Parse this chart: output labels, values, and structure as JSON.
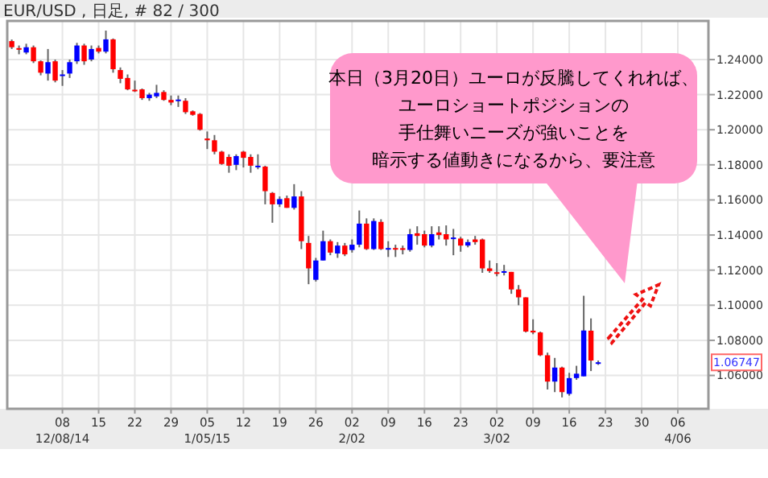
{
  "chart_data": {
    "type": "candlestick",
    "title": "EUR/USD , 日足, # 82 / 300",
    "categories": [
      null,
      null,
      null,
      null,
      null,
      null,
      null,
      "08\n12/08/14",
      null,
      null,
      null,
      null,
      "15",
      null,
      null,
      null,
      null,
      "22",
      null,
      null,
      null,
      null,
      "29",
      null,
      null,
      null,
      null,
      "05\n1/05/15",
      null,
      null,
      null,
      null,
      "12",
      null,
      null,
      null,
      null,
      "19",
      null,
      null,
      null,
      null,
      "26",
      null,
      null,
      null,
      null,
      "02\n2/02",
      null,
      null,
      null,
      null,
      "09",
      null,
      null,
      null,
      null,
      "16",
      null,
      null,
      null,
      null,
      "23",
      null,
      null,
      null,
      null,
      "02\n3/02",
      null,
      null,
      null,
      null,
      "09",
      null,
      null,
      null,
      null,
      "16",
      null,
      null,
      null,
      null,
      "23",
      null,
      null,
      null,
      null,
      "30",
      null,
      null,
      null,
      null,
      "06\n4/06",
      null,
      null,
      null,
      null
    ],
    "ohlc": [
      [
        1.2505,
        1.2514,
        1.246,
        1.247
      ],
      [
        1.2465,
        1.248,
        1.243,
        1.246
      ],
      [
        1.244,
        1.249,
        1.243,
        1.247
      ],
      [
        1.247,
        1.248,
        1.238,
        1.239
      ],
      [
        1.239,
        1.2395,
        1.231,
        1.2325
      ],
      [
        1.232,
        1.246,
        1.228,
        1.2385
      ],
      [
        1.239,
        1.24,
        1.227,
        1.228
      ],
      [
        1.231,
        1.234,
        1.225,
        1.2315
      ],
      [
        1.232,
        1.24,
        1.2295,
        1.2385
      ],
      [
        1.239,
        1.2495,
        1.2375,
        1.248
      ],
      [
        1.248,
        1.249,
        1.237,
        1.239
      ],
      [
        1.24,
        1.248,
        1.239,
        1.246
      ],
      [
        1.2466,
        1.248,
        1.2435,
        1.2445
      ],
      [
        1.2445,
        1.2565,
        1.2435,
        1.2515
      ],
      [
        1.2515,
        1.252,
        1.2325,
        1.2345
      ],
      [
        1.234,
        1.2355,
        1.2265,
        1.229
      ],
      [
        1.2295,
        1.2315,
        1.2225,
        1.223
      ],
      [
        1.2228,
        1.228,
        1.2215,
        1.2225
      ],
      [
        1.223,
        1.2235,
        1.217,
        1.218
      ],
      [
        1.218,
        1.221,
        1.2165,
        1.22
      ],
      [
        1.219,
        1.2256,
        1.218,
        1.221
      ],
      [
        1.2215,
        1.2225,
        1.2165,
        1.217
      ],
      [
        1.217,
        1.2195,
        1.214,
        1.2155
      ],
      [
        1.2168,
        1.2195,
        1.213,
        1.2172
      ],
      [
        1.2165,
        1.218,
        1.209,
        1.21
      ],
      [
        1.2105,
        1.211,
        1.208,
        1.2085
      ],
      [
        1.209,
        1.2095,
        1.1995,
        1.2
      ],
      [
        1.195,
        1.199,
        1.189,
        1.194
      ],
      [
        1.194,
        1.197,
        1.186,
        1.1875
      ],
      [
        1.1875,
        1.188,
        1.18,
        1.1805
      ],
      [
        1.1845,
        1.186,
        1.1755,
        1.1795
      ],
      [
        1.18,
        1.186,
        1.177,
        1.185
      ],
      [
        1.1875,
        1.188,
        1.1785,
        1.184
      ],
      [
        1.1845,
        1.186,
        1.1755,
        1.1795
      ],
      [
        1.179,
        1.186,
        1.1775,
        1.1795
      ],
      [
        1.179,
        1.1795,
        1.1575,
        1.165
      ],
      [
        1.164,
        1.1645,
        1.147,
        1.1575
      ],
      [
        1.1575,
        1.162,
        1.156,
        1.1605
      ],
      [
        1.161,
        1.1625,
        1.1555,
        1.1555
      ],
      [
        1.1555,
        1.169,
        1.1545,
        1.162
      ],
      [
        1.162,
        1.165,
        1.132,
        1.1365
      ],
      [
        1.1355,
        1.1395,
        1.112,
        1.121
      ],
      [
        1.1145,
        1.127,
        1.1135,
        1.1255
      ],
      [
        1.1255,
        1.1425,
        1.1255,
        1.1365
      ],
      [
        1.1365,
        1.1375,
        1.1285,
        1.13
      ],
      [
        1.1295,
        1.136,
        1.127,
        1.134
      ],
      [
        1.134,
        1.1355,
        1.128,
        1.129
      ],
      [
        1.1315,
        1.1375,
        1.13,
        1.1345
      ],
      [
        1.1345,
        1.154,
        1.133,
        1.1465
      ],
      [
        1.1465,
        1.1495,
        1.1315,
        1.132
      ],
      [
        1.132,
        1.1495,
        1.1315,
        1.148
      ],
      [
        1.1475,
        1.149,
        1.1315,
        1.132
      ],
      [
        1.1322,
        1.1365,
        1.1275,
        1.1326
      ],
      [
        1.1326,
        1.1345,
        1.1275,
        1.1322
      ],
      [
        1.1325,
        1.134,
        1.129,
        1.132
      ],
      [
        1.1315,
        1.1435,
        1.1305,
        1.1405
      ],
      [
        1.141,
        1.145,
        1.1345,
        1.1395
      ],
      [
        1.1405,
        1.1425,
        1.133,
        1.134
      ],
      [
        1.134,
        1.145,
        1.133,
        1.1405
      ],
      [
        1.1415,
        1.145,
        1.1375,
        1.14
      ],
      [
        1.1405,
        1.1455,
        1.134,
        1.1375
      ],
      [
        1.1382,
        1.1435,
        1.1285,
        1.1386
      ],
      [
        1.138,
        1.139,
        1.1305,
        1.134
      ],
      [
        1.134,
        1.1375,
        1.133,
        1.136
      ],
      [
        1.1375,
        1.1395,
        1.1345,
        1.136
      ],
      [
        1.1375,
        1.138,
        1.1185,
        1.121
      ],
      [
        1.121,
        1.1255,
        1.1185,
        1.1195
      ],
      [
        1.1188,
        1.124,
        1.1165,
        1.1184
      ],
      [
        1.119,
        1.123,
        1.117,
        1.1194
      ],
      [
        1.119,
        1.119,
        1.1065,
        1.109
      ],
      [
        1.109,
        1.1115,
        1.1,
        1.1045
      ],
      [
        1.1045,
        1.1045,
        1.0845,
        1.085
      ],
      [
        1.0855,
        1.092,
        1.0835,
        1.0845
      ],
      [
        1.0845,
        1.085,
        1.071,
        1.0715
      ],
      [
        1.0715,
        1.073,
        1.052,
        1.0565
      ],
      [
        1.0565,
        1.07,
        1.0505,
        1.0645
      ],
      [
        1.0645,
        1.065,
        1.0475,
        1.0505
      ],
      [
        1.0495,
        1.0615,
        1.0485,
        1.0585
      ],
      [
        1.0585,
        1.0655,
        1.0575,
        1.061
      ],
      [
        1.0595,
        1.1054,
        1.0595,
        1.0856
      ],
      [
        1.0855,
        1.0925,
        1.0625,
        1.0685
      ],
      [
        1.0672,
        1.0685,
        1.066,
        1.0675
      ],
      null,
      null,
      null,
      null,
      null,
      null,
      null,
      null,
      null,
      null,
      null,
      null,
      null,
      null,
      null
    ],
    "colors": [
      "#ff0000",
      "#ff0000",
      "#0000ff",
      "#ff0000",
      "#ff0000",
      "#0000ff",
      "#ff0000",
      "#0000ff",
      "#0000ff",
      "#0000ff",
      "#ff0000",
      "#0000ff",
      "#ff0000",
      "#0000ff",
      "#ff0000",
      "#ff0000",
      "#ff0000",
      "#ff0000",
      "#ff0000",
      "#0000ff",
      "#0000ff",
      "#ff0000",
      "#ff0000",
      "#0000ff",
      "#ff0000",
      "#ff0000",
      "#ff0000",
      "#ff0000",
      "#ff0000",
      "#ff0000",
      "#ff0000",
      "#0000ff",
      "#ff0000",
      "#ff0000",
      "#0000ff",
      "#ff0000",
      "#ff0000",
      "#0000ff",
      "#ff0000",
      "#0000ff",
      "#ff0000",
      "#ff0000",
      "#0000ff",
      "#0000ff",
      "#ff0000",
      "#0000ff",
      "#ff0000",
      "#0000ff",
      "#0000ff",
      "#ff0000",
      "#0000ff",
      "#ff0000",
      "#0000ff",
      "#ff0000",
      "#ff0000",
      "#0000ff",
      "#ff0000",
      "#ff0000",
      "#0000ff",
      "#ff0000",
      "#ff0000",
      "#0000ff",
      "#ff0000",
      "#0000ff",
      "#ff0000",
      "#ff0000",
      "#ff0000",
      "#ff0000",
      "#0000ff",
      "#ff0000",
      "#ff0000",
      "#ff0000",
      "#ff0000",
      "#ff0000",
      "#ff0000",
      "#0000ff",
      "#ff0000",
      "#0000ff",
      "#0000ff",
      "#0000ff",
      "#ff0000",
      "#0000ff",
      null,
      null,
      null,
      null,
      null,
      null,
      null,
      null,
      null,
      null,
      null,
      null,
      null,
      null,
      null
    ],
    "ylim": [
      1.041,
      1.262
    ],
    "yticks": [
      {
        "value": 1.06,
        "label": "1.06000"
      },
      {
        "value": 1.08,
        "label": "1.08000"
      },
      {
        "value": 1.1,
        "label": "1.10000"
      },
      {
        "value": 1.12,
        "label": "1.12000"
      },
      {
        "value": 1.14,
        "label": "1.14000"
      },
      {
        "value": 1.16,
        "label": "1.16000"
      },
      {
        "value": 1.18,
        "label": "1.18000"
      },
      {
        "value": 1.2,
        "label": "1.20000"
      },
      {
        "value": 1.22,
        "label": "1.22000"
      },
      {
        "value": 1.24,
        "label": "1.24000"
      }
    ],
    "grid": true,
    "annotations": [
      "本日（3月20日）ユーロが反騰してくれれば、",
      "ユーロショートポジションの",
      "手仕舞いニーズが強いことを",
      "暗示する値動きになるから、要注意",
      {
        "text": "1.06747",
        "y": 1.06747
      }
    ]
  }
}
